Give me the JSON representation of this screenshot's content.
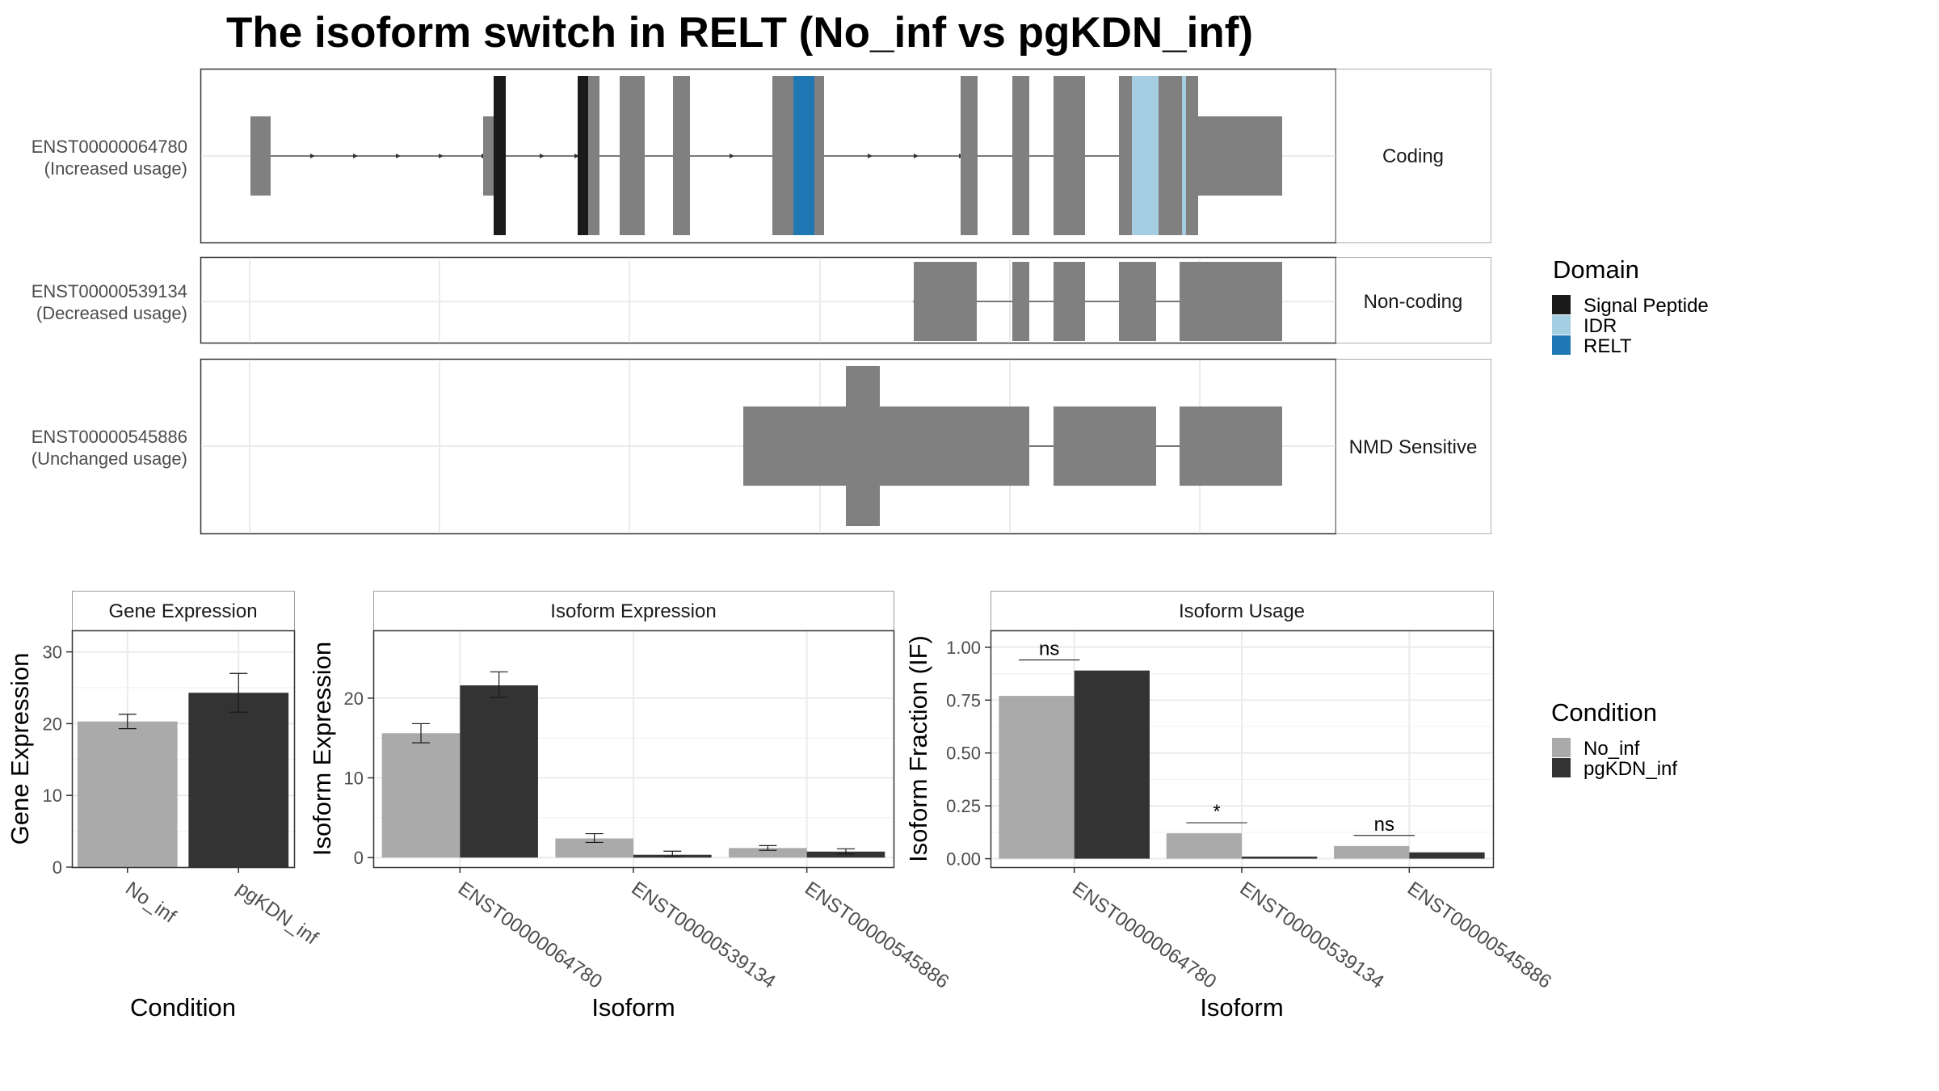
{
  "title": "The isoform switch in RELT (No_inf vs pgKDN_inf)",
  "isoforms": [
    {
      "id": "ENST00000064780",
      "usage": "(Increased usage)",
      "strip": "Coding"
    },
    {
      "id": "ENST00000539134",
      "usage": "(Decreased usage)",
      "strip": "Non-coding"
    },
    {
      "id": "ENST00000545886",
      "usage": "(Unchanged usage)",
      "strip": "NMD Sensitive"
    }
  ],
  "domain_legend": {
    "title": "Domain",
    "items": [
      {
        "label": "Signal Peptide",
        "color": "#1a1a1a"
      },
      {
        "label": "IDR",
        "color": "#a6cee3"
      },
      {
        "label": "RELT",
        "color": "#1f78b4"
      }
    ]
  },
  "condition_legend": {
    "title": "Condition",
    "items": [
      {
        "label": "No_inf",
        "color": "#aaaaaa"
      },
      {
        "label": "pgKDN_inf",
        "color": "#333333"
      }
    ]
  },
  "chart_data": [
    {
      "type": "bar",
      "panel": "Gene Expression",
      "xlabel": "Condition",
      "ylabel": "Gene Expression",
      "categories": [
        "No_inf",
        "pgKDN_inf"
      ],
      "values": [
        20.3,
        24.3
      ],
      "errors": [
        [
          19.3,
          21.3
        ],
        [
          21.6,
          27.0
        ]
      ],
      "ylim": [
        0,
        33
      ],
      "yticks": [
        0,
        10,
        20,
        30
      ],
      "colors": [
        "#aaaaaa",
        "#333333"
      ]
    },
    {
      "type": "bar",
      "panel": "Isoform Expression",
      "xlabel": "Isoform",
      "ylabel": "Isoform Expression",
      "categories": [
        "ENST00000064780",
        "ENST00000539134",
        "ENST00000545886"
      ],
      "series": [
        {
          "name": "No_inf",
          "values": [
            15.6,
            2.4,
            1.2
          ],
          "errors": [
            [
              14.4,
              16.8
            ],
            [
              1.9,
              3.0
            ],
            [
              0.9,
              1.5
            ]
          ]
        },
        {
          "name": "pgKDN_inf",
          "values": [
            21.6,
            0.35,
            0.75
          ],
          "errors": [
            [
              20.1,
              23.3
            ],
            [
              0.1,
              0.8
            ],
            [
              0.45,
              1.1
            ]
          ]
        }
      ],
      "ylim": [
        -1.2,
        28.5
      ],
      "yticks": [
        0,
        10,
        20
      ]
    },
    {
      "type": "bar",
      "panel": "Isoform Usage",
      "xlabel": "Isoform",
      "ylabel": "Isoform Fraction (IF)",
      "categories": [
        "ENST00000064780",
        "ENST00000539134",
        "ENST00000545886"
      ],
      "series": [
        {
          "name": "No_inf",
          "values": [
            0.77,
            0.12,
            0.06
          ]
        },
        {
          "name": "pgKDN_inf",
          "values": [
            0.89,
            0.01,
            0.03
          ]
        }
      ],
      "significance": [
        "ns",
        "*",
        "ns"
      ],
      "significance_y": [
        0.94,
        0.17,
        0.11
      ],
      "ylim": [
        -0.04,
        1.08
      ],
      "yticks": [
        0.0,
        0.25,
        0.5,
        0.75,
        1.0
      ],
      "ytick_labels": [
        "0.00",
        "0.25",
        "0.50",
        "0.75",
        "1.00"
      ]
    }
  ]
}
